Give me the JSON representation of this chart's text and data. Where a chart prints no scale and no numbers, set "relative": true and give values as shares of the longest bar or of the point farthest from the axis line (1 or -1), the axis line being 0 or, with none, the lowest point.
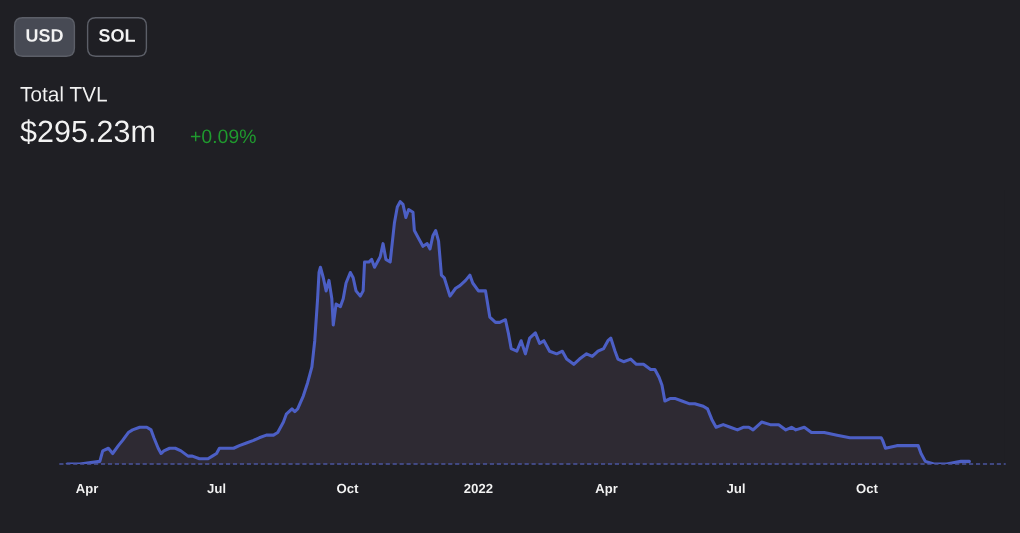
{
  "chart_data": {
    "type": "area",
    "title": "Total TVL",
    "subtitle": "$295.23m",
    "annotations": [
      "USD",
      "SOL",
      "+0.09%"
    ],
    "relative": true,
    "tick_labels": "x",
    "xlim": [
      "2021-03-13",
      "2023-01-06"
    ],
    "xticks": [
      {
        "value": "2021-04-01",
        "label": "Apr"
      },
      {
        "value": "2021-07-01",
        "label": "Jul"
      },
      {
        "value": "2021-10-01",
        "label": "Oct"
      },
      {
        "value": "2022-01-01",
        "label": "2022"
      },
      {
        "value": "2022-04-01",
        "label": "Apr"
      },
      {
        "value": "2022-07-01",
        "label": "Jul"
      },
      {
        "value": "2022-10-01",
        "label": "Oct"
      }
    ],
    "series": [
      {
        "color": "#4c5fc5",
        "x": [
          "2021-03-18",
          "2021-03-27",
          "2021-04-10",
          "2021-04-12",
          "2021-04-16",
          "2021-04-19",
          "2021-04-23",
          "2021-04-26",
          "2021-04-30",
          "2021-05-03",
          "2021-05-08",
          "2021-05-13",
          "2021-05-16",
          "2021-05-18",
          "2021-05-21",
          "2021-05-23",
          "2021-05-25",
          "2021-05-29",
          "2021-06-02",
          "2021-06-06",
          "2021-06-11",
          "2021-06-14",
          "2021-06-19",
          "2021-06-25",
          "2021-06-28",
          "2021-07-01",
          "2021-07-03",
          "2021-07-08",
          "2021-07-13",
          "2021-07-17",
          "2021-07-22",
          "2021-07-27",
          "2021-07-31",
          "2021-08-05",
          "2021-08-10",
          "2021-08-13",
          "2021-08-17",
          "2021-08-19",
          "2021-08-23",
          "2021-08-25",
          "2021-08-27",
          "2021-08-31",
          "2021-09-03",
          "2021-09-06",
          "2021-09-08",
          "2021-09-10",
          "2021-09-11",
          "2021-09-12",
          "2021-09-14",
          "2021-09-16",
          "2021-09-18",
          "2021-09-20",
          "2021-09-21",
          "2021-09-23",
          "2021-09-26",
          "2021-09-28",
          "2021-09-30",
          "2021-10-03",
          "2021-10-05",
          "2021-10-07",
          "2021-10-10",
          "2021-10-12",
          "2021-10-13",
          "2021-10-16",
          "2021-10-18",
          "2021-10-20",
          "2021-10-24",
          "2021-10-26",
          "2021-10-28",
          "2021-10-31",
          "2021-11-03",
          "2021-11-05",
          "2021-11-07",
          "2021-11-09",
          "2021-11-11",
          "2021-11-13",
          "2021-11-16",
          "2021-11-17",
          "2021-11-20",
          "2021-11-23",
          "2021-11-26",
          "2021-11-28",
          "2021-11-30",
          "2021-12-02",
          "2021-12-04",
          "2021-12-06",
          "2021-12-08",
          "2021-12-12",
          "2021-12-16",
          "2021-12-19",
          "2021-12-23",
          "2021-12-26",
          "2021-12-28",
          "2022-01-01",
          "2022-01-06",
          "2022-01-09",
          "2022-01-13",
          "2022-01-16",
          "2022-01-20",
          "2022-01-22",
          "2022-01-24",
          "2022-01-28",
          "2022-01-31",
          "2022-02-03",
          "2022-02-06",
          "2022-02-10",
          "2022-02-13",
          "2022-02-16",
          "2022-02-20",
          "2022-02-25",
          "2022-03-01",
          "2022-03-04",
          "2022-03-09",
          "2022-03-13",
          "2022-03-18",
          "2022-03-22",
          "2022-03-26",
          "2022-03-30",
          "2022-04-02",
          "2022-04-04",
          "2022-04-07",
          "2022-04-09",
          "2022-04-13",
          "2022-04-18",
          "2022-04-22",
          "2022-04-27",
          "2022-05-02",
          "2022-05-05",
          "2022-05-08",
          "2022-05-10",
          "2022-05-12",
          "2022-05-16",
          "2022-05-19",
          "2022-05-24",
          "2022-05-29",
          "2022-06-02",
          "2022-06-08",
          "2022-06-11",
          "2022-06-14",
          "2022-06-17",
          "2022-06-22",
          "2022-06-27",
          "2022-07-02",
          "2022-07-06",
          "2022-07-10",
          "2022-07-13",
          "2022-07-19",
          "2022-07-25",
          "2022-07-31",
          "2022-08-05",
          "2022-08-09",
          "2022-08-12",
          "2022-08-18",
          "2022-08-23",
          "2022-09-01",
          "2022-09-10",
          "2022-09-19",
          "2022-10-01",
          "2022-10-11",
          "2022-10-12",
          "2022-10-14",
          "2022-10-22",
          "2022-11-01",
          "2022-11-06",
          "2022-11-08",
          "2022-11-11",
          "2022-11-17",
          "2022-11-26",
          "2022-12-06",
          "2022-12-12"
        ],
        "values": [
          0.0,
          0.0,
          0.01,
          0.05,
          0.06,
          0.04,
          0.07,
          0.09,
          0.12,
          0.13,
          0.14,
          0.14,
          0.13,
          0.1,
          0.06,
          0.04,
          0.05,
          0.06,
          0.06,
          0.05,
          0.03,
          0.03,
          0.02,
          0.02,
          0.03,
          0.04,
          0.06,
          0.06,
          0.06,
          0.07,
          0.08,
          0.09,
          0.1,
          0.11,
          0.11,
          0.12,
          0.16,
          0.19,
          0.21,
          0.2,
          0.21,
          0.26,
          0.31,
          0.37,
          0.47,
          0.63,
          0.73,
          0.75,
          0.71,
          0.66,
          0.7,
          0.63,
          0.53,
          0.61,
          0.6,
          0.63,
          0.69,
          0.73,
          0.71,
          0.66,
          0.64,
          0.66,
          0.77,
          0.77,
          0.78,
          0.75,
          0.79,
          0.84,
          0.78,
          0.77,
          0.92,
          0.98,
          1.0,
          0.99,
          0.94,
          0.97,
          0.96,
          0.89,
          0.86,
          0.83,
          0.84,
          0.82,
          0.87,
          0.89,
          0.85,
          0.72,
          0.71,
          0.64,
          0.67,
          0.68,
          0.7,
          0.72,
          0.69,
          0.66,
          0.66,
          0.56,
          0.54,
          0.54,
          0.55,
          0.5,
          0.44,
          0.43,
          0.47,
          0.42,
          0.48,
          0.5,
          0.46,
          0.47,
          0.43,
          0.42,
          0.43,
          0.4,
          0.38,
          0.4,
          0.42,
          0.41,
          0.43,
          0.44,
          0.47,
          0.48,
          0.43,
          0.4,
          0.39,
          0.4,
          0.38,
          0.38,
          0.36,
          0.36,
          0.33,
          0.3,
          0.24,
          0.25,
          0.25,
          0.24,
          0.23,
          0.23,
          0.22,
          0.21,
          0.17,
          0.14,
          0.15,
          0.14,
          0.13,
          0.14,
          0.14,
          0.13,
          0.16,
          0.15,
          0.15,
          0.13,
          0.14,
          0.13,
          0.14,
          0.12,
          0.12,
          0.11,
          0.1,
          0.1,
          0.1,
          0.09,
          0.06,
          0.07,
          0.07,
          0.07,
          0.04,
          0.01,
          0.0,
          0.0,
          0.01,
          0.01
        ]
      }
    ]
  }
}
